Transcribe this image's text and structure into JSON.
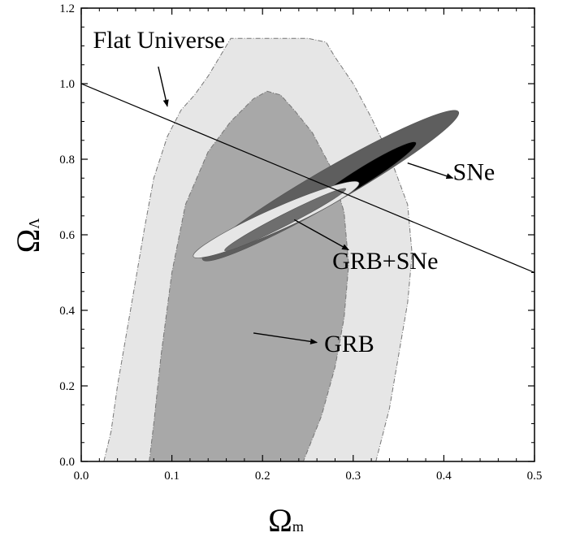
{
  "chart_data": {
    "type": "contour",
    "title": "",
    "xlabel": "Ω",
    "xlabel_sub": "m",
    "ylabel": "Ω",
    "ylabel_sub": "Λ",
    "xlim": [
      0.0,
      0.5
    ],
    "ylim": [
      0.0,
      1.2
    ],
    "x_ticks": [
      "0.0",
      "0.1",
      "0.2",
      "0.3",
      "0.4",
      "0.5"
    ],
    "y_ticks": [
      "0.0",
      "0.2",
      "0.4",
      "0.6",
      "0.8",
      "1.0",
      "1.2"
    ],
    "grid": false,
    "legend": "none",
    "regions": [
      {
        "key": "grb_outer",
        "label": "GRB",
        "color": "#e6e6e6",
        "boundary": [
          [
            0.025,
            0.0
          ],
          [
            0.033,
            0.08
          ],
          [
            0.04,
            0.2
          ],
          [
            0.05,
            0.34
          ],
          [
            0.06,
            0.48
          ],
          [
            0.07,
            0.62
          ],
          [
            0.08,
            0.75
          ],
          [
            0.095,
            0.86
          ],
          [
            0.11,
            0.93
          ],
          [
            0.125,
            0.97
          ],
          [
            0.14,
            1.02
          ],
          [
            0.155,
            1.08
          ],
          [
            0.165,
            1.12
          ],
          [
            0.25,
            1.12
          ],
          [
            0.27,
            1.11
          ],
          [
            0.28,
            1.07
          ],
          [
            0.3,
            1.0
          ],
          [
            0.32,
            0.91
          ],
          [
            0.34,
            0.81
          ],
          [
            0.36,
            0.68
          ],
          [
            0.365,
            0.55
          ],
          [
            0.36,
            0.42
          ],
          [
            0.35,
            0.28
          ],
          [
            0.34,
            0.14
          ],
          [
            0.325,
            0.0
          ]
        ]
      },
      {
        "key": "grb_inner",
        "label": "GRB",
        "color": "#a8a8a8",
        "boundary": [
          [
            0.075,
            0.0
          ],
          [
            0.08,
            0.1
          ],
          [
            0.088,
            0.28
          ],
          [
            0.1,
            0.5
          ],
          [
            0.115,
            0.68
          ],
          [
            0.14,
            0.82
          ],
          [
            0.165,
            0.9
          ],
          [
            0.19,
            0.96
          ],
          [
            0.205,
            0.98
          ],
          [
            0.22,
            0.97
          ],
          [
            0.235,
            0.93
          ],
          [
            0.255,
            0.87
          ],
          [
            0.275,
            0.78
          ],
          [
            0.29,
            0.66
          ],
          [
            0.295,
            0.52
          ],
          [
            0.29,
            0.38
          ],
          [
            0.28,
            0.25
          ],
          [
            0.265,
            0.12
          ],
          [
            0.245,
            0.0
          ]
        ]
      },
      {
        "key": "sne_outer",
        "label": "SNe",
        "color": "#5e5e5e",
        "ellipse": {
          "center": [
            0.275,
            0.73
          ],
          "rx": 0.163,
          "ry": 0.045,
          "rotation_deg": -30
        }
      },
      {
        "key": "sne_inner",
        "label": "SNe",
        "color": "#000000",
        "ellipse": {
          "center": [
            0.31,
            0.755
          ],
          "rx": 0.07,
          "ry": 0.022,
          "rotation_deg": -32
        }
      },
      {
        "key": "combined_outer",
        "label": "GRB+SNe",
        "color": "#e6e6e6",
        "ellipse": {
          "center": [
            0.215,
            0.64
          ],
          "rx": 0.1,
          "ry": 0.03,
          "rotation_deg": -24
        }
      },
      {
        "key": "combined_inner",
        "label": "GRB+SNe",
        "color": "#6e6e6e",
        "ellipse": {
          "center": [
            0.225,
            0.64
          ],
          "rx": 0.075,
          "ry": 0.015,
          "rotation_deg": -27
        }
      }
    ],
    "flat_line": {
      "label": "Flat Universe",
      "from": [
        0.0,
        1.0
      ],
      "to": [
        0.5,
        0.5
      ]
    },
    "annotations": [
      {
        "key": "flat",
        "text": "Flat Universe",
        "text_at": [
          0.013,
          1.095
        ],
        "arrow_from": [
          0.085,
          1.045
        ],
        "arrow_to": [
          0.095,
          0.94
        ]
      },
      {
        "key": "sne",
        "text": "SNe",
        "text_at": [
          0.41,
          0.745
        ],
        "arrow_from": [
          0.36,
          0.79
        ],
        "arrow_to": [
          0.41,
          0.75
        ]
      },
      {
        "key": "combined",
        "text": "GRB+SNe",
        "text_at": [
          0.277,
          0.51
        ],
        "arrow_from": [
          0.235,
          0.64
        ],
        "arrow_to": [
          0.295,
          0.56
        ]
      },
      {
        "key": "grb",
        "text": "GRB",
        "text_at": [
          0.268,
          0.29
        ],
        "arrow_from": [
          0.19,
          0.34
        ],
        "arrow_to": [
          0.26,
          0.315
        ]
      }
    ]
  }
}
